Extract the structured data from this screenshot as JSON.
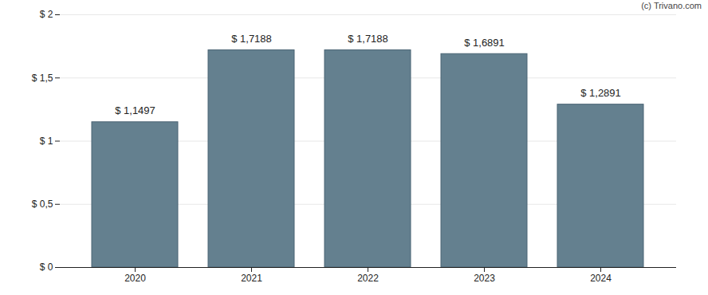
{
  "chart_data": {
    "type": "bar",
    "caption": "(c) Trivano.com",
    "categories": [
      "2020",
      "2021",
      "2022",
      "2023",
      "2024"
    ],
    "values": [
      1.1497,
      1.7188,
      1.7188,
      1.6891,
      1.2891
    ],
    "value_labels": [
      "$ 1,1497",
      "$ 1,7188",
      "$ 1,7188",
      "$ 1,6891",
      "$ 1,2891"
    ],
    "data_labels": true,
    "color": "#64808f",
    "ylim": [
      0,
      2
    ],
    "yticks": [
      {
        "value": 0,
        "label": "$ 0"
      },
      {
        "value": 0.5,
        "label": "$ 0,5"
      },
      {
        "value": 1,
        "label": "$ 1"
      },
      {
        "value": 1.5,
        "label": "$ 1,5"
      },
      {
        "value": 2,
        "label": "$ 2"
      }
    ],
    "grid": true
  }
}
